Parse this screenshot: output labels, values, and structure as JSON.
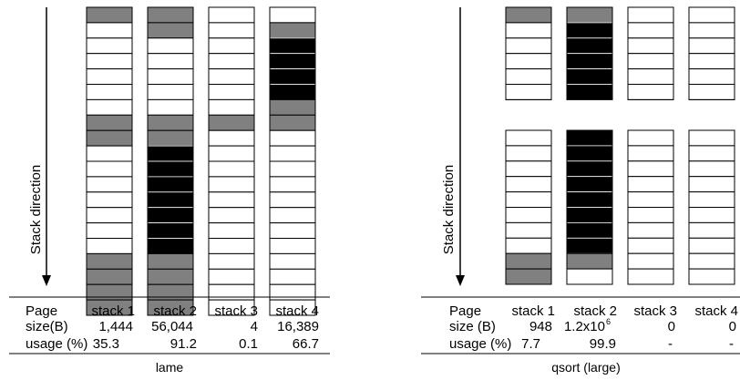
{
  "legend_colors": {
    "white": "#ffffff",
    "gray": "#808080",
    "black": "#000000"
  },
  "panels": [
    {
      "axis_label": "Stack direction",
      "caption": "lame",
      "stacks": [
        {
          "name": "stack 1",
          "segments": [
            [
              1,
              "gray"
            ],
            [
              6,
              "white"
            ],
            [
              2,
              "gray"
            ],
            [
              7,
              "white"
            ],
            [
              4,
              "gray"
            ]
          ]
        },
        {
          "name": "stack 2",
          "segments": [
            [
              2,
              "gray"
            ],
            [
              5,
              "white"
            ],
            [
              2,
              "gray"
            ],
            [
              7,
              "black"
            ],
            [
              4,
              "gray"
            ]
          ]
        },
        {
          "name": "stack 3",
          "segments": [
            [
              1,
              "white"
            ],
            [
              6,
              "white"
            ],
            [
              1,
              "gray"
            ],
            [
              12,
              "white"
            ]
          ]
        },
        {
          "name": "stack 4",
          "segments": [
            [
              1,
              "white"
            ],
            [
              1,
              "gray"
            ],
            [
              4,
              "black"
            ],
            [
              2,
              "gray"
            ],
            [
              12,
              "white"
            ]
          ]
        }
      ],
      "table": {
        "labels": [
          "Page",
          "size(B)",
          "usage (%)"
        ],
        "values": [
          {
            "header": "stack 1",
            "size": "1,444",
            "usage": "35.3"
          },
          {
            "header": "stack 2",
            "size": "56,044",
            "usage": "91.2"
          },
          {
            "header": "stack 3",
            "size": "4",
            "usage": "0.1"
          },
          {
            "header": "stack 4",
            "size": "16,389",
            "usage": "66.7"
          }
        ]
      }
    },
    {
      "axis_label": "Stack direction",
      "caption": "qsort (large)",
      "stacks": [
        {
          "name": "stack 1",
          "blocks": [
            [
              [
                1,
                "gray"
              ],
              [
                5,
                "white"
              ]
            ],
            [
              [
                8,
                "white"
              ],
              [
                2,
                "gray"
              ]
            ]
          ]
        },
        {
          "name": "stack 2",
          "blocks": [
            [
              [
                1,
                "gray"
              ],
              [
                5,
                "black"
              ]
            ],
            [
              [
                8,
                "black"
              ],
              [
                1,
                "gray"
              ],
              [
                1,
                "white"
              ]
            ]
          ]
        },
        {
          "name": "stack 3",
          "blocks": [
            [
              [
                6,
                "white"
              ]
            ],
            [
              [
                10,
                "white"
              ]
            ]
          ]
        },
        {
          "name": "stack 4",
          "blocks": [
            [
              [
                6,
                "white"
              ]
            ],
            [
              [
                10,
                "white"
              ]
            ]
          ]
        }
      ],
      "table": {
        "labels": [
          "Page",
          "size (B)",
          "usage (%)"
        ],
        "values": [
          {
            "header": "stack 1",
            "size": "948",
            "usage": "7.7"
          },
          {
            "header": "stack 2",
            "size": "1.2x10",
            "size_sup": "6",
            "usage": "99.9"
          },
          {
            "header": "stack 3",
            "size": "0",
            "usage": "-"
          },
          {
            "header": "stack 4",
            "size": "0",
            "usage": "-"
          }
        ]
      }
    }
  ]
}
